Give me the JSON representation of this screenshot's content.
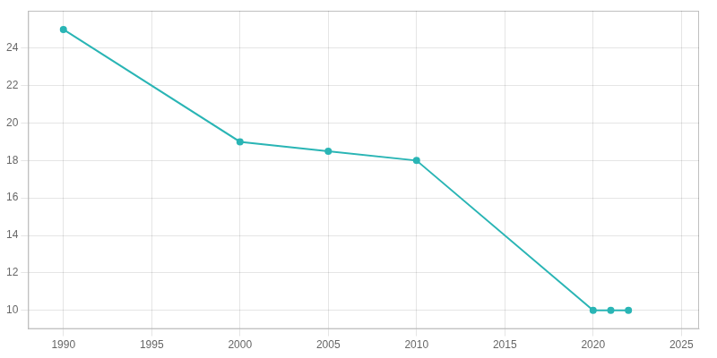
{
  "chart_data": {
    "type": "line",
    "x": [
      1990,
      2000,
      2005,
      2010,
      2020,
      2021,
      2022
    ],
    "values": [
      25,
      19,
      18.5,
      18,
      10,
      10,
      10
    ],
    "color": "#2ab5b5",
    "marker": "o",
    "xlim": [
      1988,
      2026
    ],
    "ylim": [
      9,
      26
    ],
    "xticks": [
      1990,
      1995,
      2000,
      2005,
      2010,
      2015,
      2020,
      2025
    ],
    "yticks": [
      10,
      12,
      14,
      16,
      18,
      20,
      22,
      24
    ],
    "grid": true
  }
}
